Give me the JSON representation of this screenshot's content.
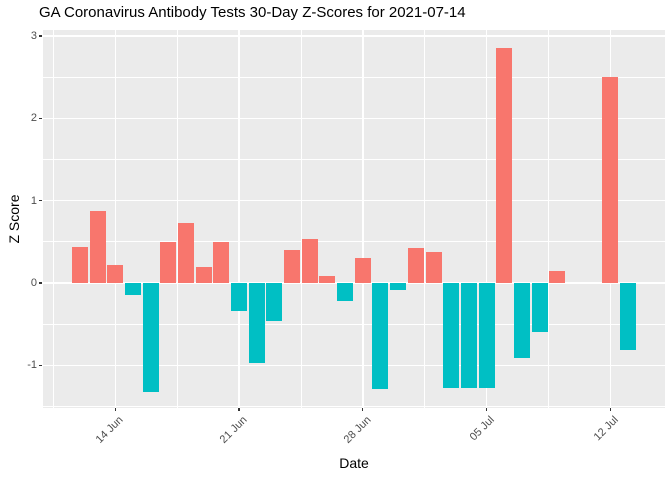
{
  "chart_data": {
    "type": "bar",
    "title": "GA Coronavirus Antibody Tests 30-Day Z-Scores for 2021-07-14",
    "xlabel": "Date",
    "ylabel": "Z Score",
    "legend": "none",
    "grid": "major and minor, white on grey panel",
    "panel_bg": "#EBEBEB",
    "grid_color": "#FFFFFF",
    "tick_label_color": "#4D4D4D",
    "title_color": "#000000",
    "bar_colors": {
      "positive": "#F8766D",
      "negative": "#00BFC4"
    },
    "ylim": [
      -1.52,
      3.07
    ],
    "y_ticks": [
      3,
      2,
      1,
      0,
      -1
    ],
    "y_minor_step": 0.5,
    "x_ticks": [
      {
        "label": "14 Jun",
        "date": "2021-06-14"
      },
      {
        "label": "21 Jun",
        "date": "2021-06-21"
      },
      {
        "label": "28 Jun",
        "date": "2021-06-28"
      },
      {
        "label": "05 Jul",
        "date": "2021-07-05"
      },
      {
        "label": "12 Jul",
        "date": "2021-07-12"
      }
    ],
    "bars": [
      {
        "date": "2021-06-12",
        "value": 0.44
      },
      {
        "date": "2021-06-13",
        "value": 0.87
      },
      {
        "date": "2021-06-14",
        "value": 0.22
      },
      {
        "date": "2021-06-15",
        "value": -0.14
      },
      {
        "date": "2021-06-16",
        "value": -1.32
      },
      {
        "date": "2021-06-17",
        "value": 0.5
      },
      {
        "date": "2021-06-18",
        "value": 0.73
      },
      {
        "date": "2021-06-19",
        "value": 0.2
      },
      {
        "date": "2021-06-20",
        "value": 0.5
      },
      {
        "date": "2021-06-21",
        "value": -0.34
      },
      {
        "date": "2021-06-22",
        "value": -0.97
      },
      {
        "date": "2021-06-23",
        "value": -0.46
      },
      {
        "date": "2021-06-24",
        "value": 0.4
      },
      {
        "date": "2021-06-25",
        "value": 0.53
      },
      {
        "date": "2021-06-26",
        "value": 0.08
      },
      {
        "date": "2021-06-27",
        "value": -0.22
      },
      {
        "date": "2021-06-28",
        "value": 0.3
      },
      {
        "date": "2021-06-29",
        "value": -1.29
      },
      {
        "date": "2021-06-30",
        "value": -0.09
      },
      {
        "date": "2021-07-01",
        "value": 0.42
      },
      {
        "date": "2021-07-02",
        "value": 0.38
      },
      {
        "date": "2021-07-03",
        "value": -1.28
      },
      {
        "date": "2021-07-04",
        "value": -1.28
      },
      {
        "date": "2021-07-05",
        "value": -1.28
      },
      {
        "date": "2021-07-06",
        "value": 2.85
      },
      {
        "date": "2021-07-07",
        "value": -0.91
      },
      {
        "date": "2021-07-08",
        "value": -0.59
      },
      {
        "date": "2021-07-09",
        "value": 0.15
      },
      {
        "date": "2021-07-12",
        "value": 2.5
      },
      {
        "date": "2021-07-13",
        "value": -0.81
      }
    ]
  }
}
